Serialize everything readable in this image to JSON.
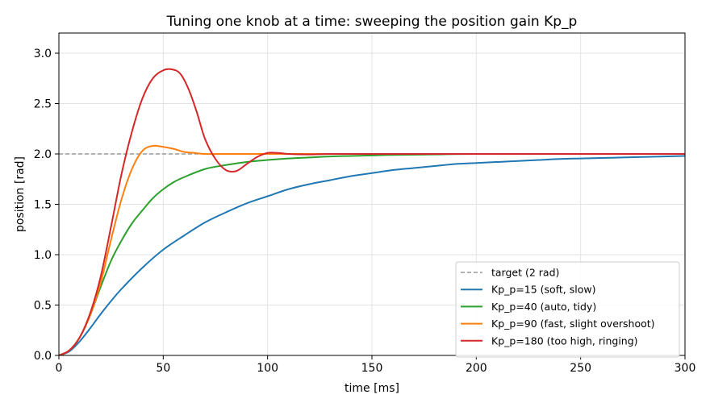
{
  "chart_data": {
    "type": "line",
    "title": "Tuning one knob at a time: sweeping the position gain Kp_p",
    "xlabel": "time [ms]",
    "ylabel": "position [rad]",
    "xlim": [
      0,
      300
    ],
    "ylim": [
      0,
      3.2
    ],
    "xticks": [
      0,
      50,
      100,
      150,
      200,
      250,
      300
    ],
    "yticks": [
      0.0,
      0.5,
      1.0,
      1.5,
      2.0,
      2.5,
      3.0
    ],
    "xtick_labels": [
      "0",
      "50",
      "100",
      "150",
      "200",
      "250",
      "300"
    ],
    "ytick_labels": [
      "0.0",
      "0.5",
      "1.0",
      "1.5",
      "2.0",
      "2.5",
      "3.0"
    ],
    "grid": true,
    "legend_position": "bottom-right",
    "target": {
      "name": "target (2 rad)",
      "value": 2.0,
      "color": "#999999",
      "style": "dashed"
    },
    "series": [
      {
        "name": "Kp_p=15  (soft, slow)",
        "color": "#1f77b4",
        "x": [
          0,
          5,
          10,
          15,
          20,
          25,
          30,
          40,
          50,
          60,
          70,
          80,
          90,
          100,
          110,
          120,
          130,
          140,
          150,
          160,
          170,
          180,
          190,
          200,
          210,
          220,
          230,
          240,
          250,
          260,
          270,
          280,
          290,
          300
        ],
        "y": [
          0.0,
          0.04,
          0.14,
          0.27,
          0.41,
          0.54,
          0.66,
          0.87,
          1.05,
          1.19,
          1.32,
          1.42,
          1.51,
          1.58,
          1.65,
          1.7,
          1.74,
          1.78,
          1.81,
          1.84,
          1.86,
          1.88,
          1.9,
          1.91,
          1.92,
          1.93,
          1.94,
          1.95,
          1.955,
          1.96,
          1.965,
          1.97,
          1.975,
          1.98
        ]
      },
      {
        "name": "Kp_p=40  (auto, tidy)",
        "color": "#2ca02c",
        "x": [
          0,
          5,
          10,
          15,
          20,
          25,
          30,
          35,
          40,
          45,
          50,
          55,
          60,
          70,
          80,
          90,
          100,
          110,
          120,
          130,
          140,
          150,
          160,
          180,
          200,
          250,
          300
        ],
        "y": [
          0.0,
          0.05,
          0.18,
          0.4,
          0.68,
          0.94,
          1.14,
          1.31,
          1.44,
          1.56,
          1.65,
          1.72,
          1.77,
          1.85,
          1.89,
          1.92,
          1.94,
          1.955,
          1.965,
          1.975,
          1.98,
          1.985,
          1.99,
          1.995,
          2.0,
          2.0,
          2.0
        ]
      },
      {
        "name": "Kp_p=90  (fast, slight overshoot)",
        "color": "#ff7f0e",
        "x": [
          0,
          5,
          10,
          15,
          20,
          25,
          30,
          35,
          40,
          45,
          50,
          55,
          60,
          65,
          70,
          80,
          90,
          100,
          150,
          200,
          250,
          300
        ],
        "y": [
          0.0,
          0.05,
          0.18,
          0.4,
          0.72,
          1.15,
          1.55,
          1.85,
          2.03,
          2.08,
          2.07,
          2.05,
          2.02,
          2.01,
          2.0,
          2.0,
          2.0,
          2.0,
          2.0,
          2.0,
          2.0,
          2.0
        ]
      },
      {
        "name": "Kp_p=180 (too high, ringing)",
        "color": "#d62728",
        "x": [
          0,
          5,
          10,
          15,
          20,
          25,
          30,
          35,
          40,
          45,
          50,
          54,
          58,
          62,
          66,
          70,
          75,
          80,
          85,
          90,
          95,
          100,
          105,
          110,
          120,
          130,
          150,
          200,
          250,
          300
        ],
        "y": [
          0.0,
          0.05,
          0.18,
          0.42,
          0.78,
          1.28,
          1.8,
          2.22,
          2.55,
          2.75,
          2.83,
          2.84,
          2.8,
          2.65,
          2.42,
          2.15,
          1.95,
          1.84,
          1.83,
          1.9,
          1.97,
          2.01,
          2.01,
          2.0,
          1.995,
          2.0,
          2.0,
          2.0,
          2.0,
          2.0
        ]
      }
    ]
  }
}
